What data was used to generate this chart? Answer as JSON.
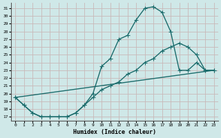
{
  "xlabel": "Humidex (Indice chaleur)",
  "bg_color": "#cfe8e8",
  "grid_color": "#d4c8c8",
  "line_color": "#1a6b6b",
  "xlim": [
    -0.5,
    23.5
  ],
  "ylim": [
    16.5,
    31.7
  ],
  "yticks": [
    17,
    18,
    19,
    20,
    21,
    22,
    23,
    24,
    25,
    26,
    27,
    28,
    29,
    30,
    31
  ],
  "xticks": [
    0,
    1,
    2,
    3,
    4,
    5,
    6,
    7,
    8,
    9,
    10,
    11,
    12,
    13,
    14,
    15,
    16,
    17,
    18,
    19,
    20,
    21,
    22,
    23
  ],
  "curve1_x": [
    0,
    1,
    2,
    3,
    4,
    5,
    6,
    7,
    8,
    9,
    10,
    11,
    12,
    13,
    14,
    15,
    16,
    17,
    18,
    19,
    20,
    21,
    22,
    23
  ],
  "curve1_y": [
    19.5,
    18.5,
    17.5,
    17.0,
    17.0,
    17.0,
    17.0,
    17.5,
    18.5,
    20.0,
    23.5,
    24.5,
    27.0,
    27.5,
    29.5,
    31.0,
    31.2,
    30.5,
    28.0,
    23.0,
    23.0,
    24.0,
    23.0,
    23.0
  ],
  "curve2_x": [
    0,
    1,
    2,
    3,
    4,
    5,
    6,
    7,
    8,
    9,
    10,
    11,
    12,
    13,
    14,
    15,
    16,
    17,
    18,
    19,
    20,
    21,
    22,
    23
  ],
  "curve2_y": [
    19.5,
    18.5,
    17.5,
    17.0,
    17.0,
    17.0,
    17.0,
    17.5,
    18.5,
    19.5,
    20.5,
    21.0,
    21.5,
    22.5,
    23.0,
    24.0,
    24.5,
    25.5,
    26.0,
    26.5,
    26.0,
    25.0,
    23.0,
    23.0
  ],
  "curve3_x": [
    0,
    23
  ],
  "curve3_y": [
    19.5,
    23.0
  ]
}
